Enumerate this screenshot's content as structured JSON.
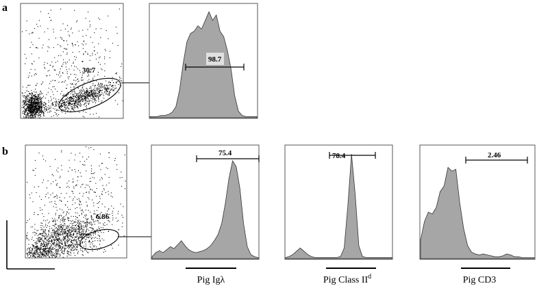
{
  "panels": {
    "a": {
      "letter": "a"
    },
    "b": {
      "letter": "b"
    }
  },
  "chart_data": [
    {
      "type": "scatter",
      "panel": "a",
      "gate_label": "30.7",
      "population": "dense cluster near origin with elongated diagonal population gated by ellipse"
    },
    {
      "type": "area",
      "panel": "a",
      "gate_label": "98.7",
      "xlabel": "",
      "series": [
        {
          "values": [
            0.01,
            0.01,
            0.01,
            0.02,
            0.02,
            0.03,
            0.05,
            0.1,
            0.25,
            0.5,
            0.7,
            0.78,
            0.8,
            0.85,
            0.82,
            0.9,
            0.98,
            0.9,
            0.95,
            0.8,
            0.75,
            0.62,
            0.45,
            0.2,
            0.06,
            0.02,
            0.01,
            0.01,
            0.01,
            0.01
          ]
        }
      ]
    },
    {
      "type": "scatter",
      "panel": "b",
      "gate_label": "6.86",
      "population": "broad cluster near origin with small gated ellipse"
    },
    {
      "type": "area",
      "panel": "b",
      "gate_label": "75.4",
      "xlabel": "Pig Igλ",
      "series": [
        {
          "values": [
            0.02,
            0.06,
            0.08,
            0.06,
            0.09,
            0.12,
            0.1,
            0.14,
            0.18,
            0.13,
            0.09,
            0.07,
            0.06,
            0.07,
            0.08,
            0.1,
            0.13,
            0.18,
            0.24,
            0.35,
            0.55,
            0.8,
            0.98,
            0.92,
            0.7,
            0.35,
            0.12,
            0.04,
            0.02,
            0.01
          ]
        }
      ]
    },
    {
      "type": "area",
      "panel": "b",
      "gate_label": "78.4",
      "xlabel_main": "Pig Class II",
      "xlabel_sup": "d",
      "series": [
        {
          "values": [
            0.01,
            0.02,
            0.04,
            0.07,
            0.1,
            0.07,
            0.04,
            0.02,
            0.01,
            0.01,
            0.01,
            0.01,
            0.01,
            0.01,
            0.01,
            0.02,
            0.1,
            0.5,
            0.98,
            0.6,
            0.12,
            0.02,
            0.01,
            0.01,
            0.01,
            0.01,
            0.01,
            0.01,
            0.01,
            0.01
          ]
        }
      ]
    },
    {
      "type": "area",
      "panel": "b",
      "gate_label": "2.46",
      "xlabel": "Pig CD3",
      "series": [
        {
          "values": [
            0.2,
            0.4,
            0.5,
            0.48,
            0.55,
            0.72,
            0.78,
            0.98,
            0.94,
            0.96,
            0.6,
            0.32,
            0.14,
            0.07,
            0.05,
            0.04,
            0.05,
            0.04,
            0.03,
            0.02,
            0.02,
            0.03,
            0.05,
            0.04,
            0.02,
            0.02,
            0.01,
            0.01,
            0.01,
            0.01
          ]
        }
      ]
    }
  ]
}
